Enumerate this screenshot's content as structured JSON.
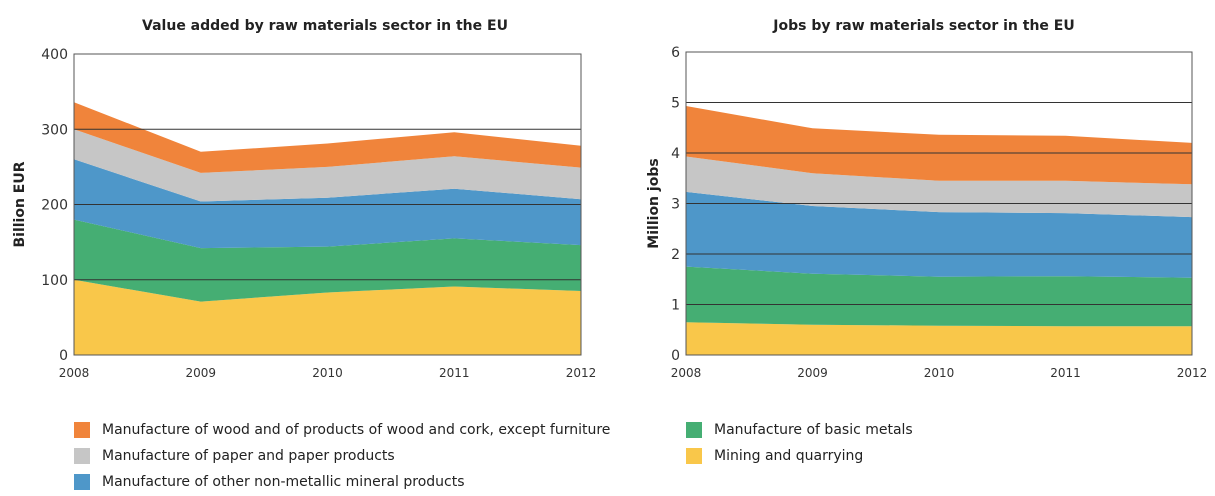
{
  "chart_data": [
    {
      "type": "area",
      "stacked": true,
      "title": "Value added by raw materials sector in the EU",
      "xlabel": "",
      "ylabel": "Billion EUR",
      "x": [
        "2008",
        "2009",
        "2010",
        "2011",
        "2012"
      ],
      "ylim": [
        0,
        400
      ],
      "yticks": [
        "0",
        "100",
        "200",
        "300",
        "400"
      ],
      "grid": "horizontal",
      "series": [
        {
          "name": "Mining and quarrying",
          "color": "#f9c74a",
          "values": [
            100,
            71,
            83,
            91,
            85
          ]
        },
        {
          "name": "Manufacture of basic metals",
          "color": "#45ae73",
          "values": [
            80,
            71,
            61,
            64,
            61
          ]
        },
        {
          "name": "Manufacture of other non-metallic mineral products",
          "color": "#4e97c9",
          "values": [
            80,
            62,
            65,
            66,
            61
          ]
        },
        {
          "name": "Manufacture of paper and paper products",
          "color": "#c6c6c6",
          "values": [
            40,
            38,
            41,
            43,
            42
          ]
        },
        {
          "name": "Manufacture of wood and of products of wood and cork, except furniture",
          "color": "#f0843b",
          "values": [
            36,
            28,
            31,
            32,
            29
          ]
        }
      ]
    },
    {
      "type": "area",
      "stacked": true,
      "title": "Jobs by raw materials sector in the EU",
      "xlabel": "",
      "ylabel": "Million jobs",
      "x": [
        "2008",
        "2009",
        "2010",
        "2011",
        "2012"
      ],
      "ylim": [
        0,
        6
      ],
      "yticks": [
        "0",
        "1",
        "2",
        "3",
        "4",
        "5",
        "6"
      ],
      "grid": "horizontal",
      "series": [
        {
          "name": "Mining and quarrying",
          "color": "#f9c74a",
          "values": [
            0.65,
            0.6,
            0.58,
            0.57,
            0.57
          ]
        },
        {
          "name": "Manufacture of basic metals",
          "color": "#45ae73",
          "values": [
            1.1,
            1.01,
            0.97,
            0.99,
            0.96
          ]
        },
        {
          "name": "Manufacture of other non-metallic mineral products",
          "color": "#4e97c9",
          "values": [
            1.48,
            1.34,
            1.28,
            1.25,
            1.2
          ]
        },
        {
          "name": "Manufacture of paper and paper products",
          "color": "#c6c6c6",
          "values": [
            0.7,
            0.65,
            0.62,
            0.64,
            0.65
          ]
        },
        {
          "name": "Manufacture of wood and of products of wood and cork, except furniture",
          "color": "#f0843b",
          "values": [
            1.0,
            0.89,
            0.91,
            0.89,
            0.82
          ]
        }
      ]
    }
  ],
  "legend": [
    {
      "label": "Manufacture of wood and of products of wood and cork, except furniture",
      "color": "#f0843b"
    },
    {
      "label": "Manufacture of paper and paper products",
      "color": "#c6c6c6"
    },
    {
      "label": "Manufacture of other non-metallic mineral products",
      "color": "#4e97c9"
    },
    {
      "label": "Manufacture of basic metals",
      "color": "#45ae73"
    },
    {
      "label": "Mining and quarrying",
      "color": "#f9c74a"
    }
  ]
}
